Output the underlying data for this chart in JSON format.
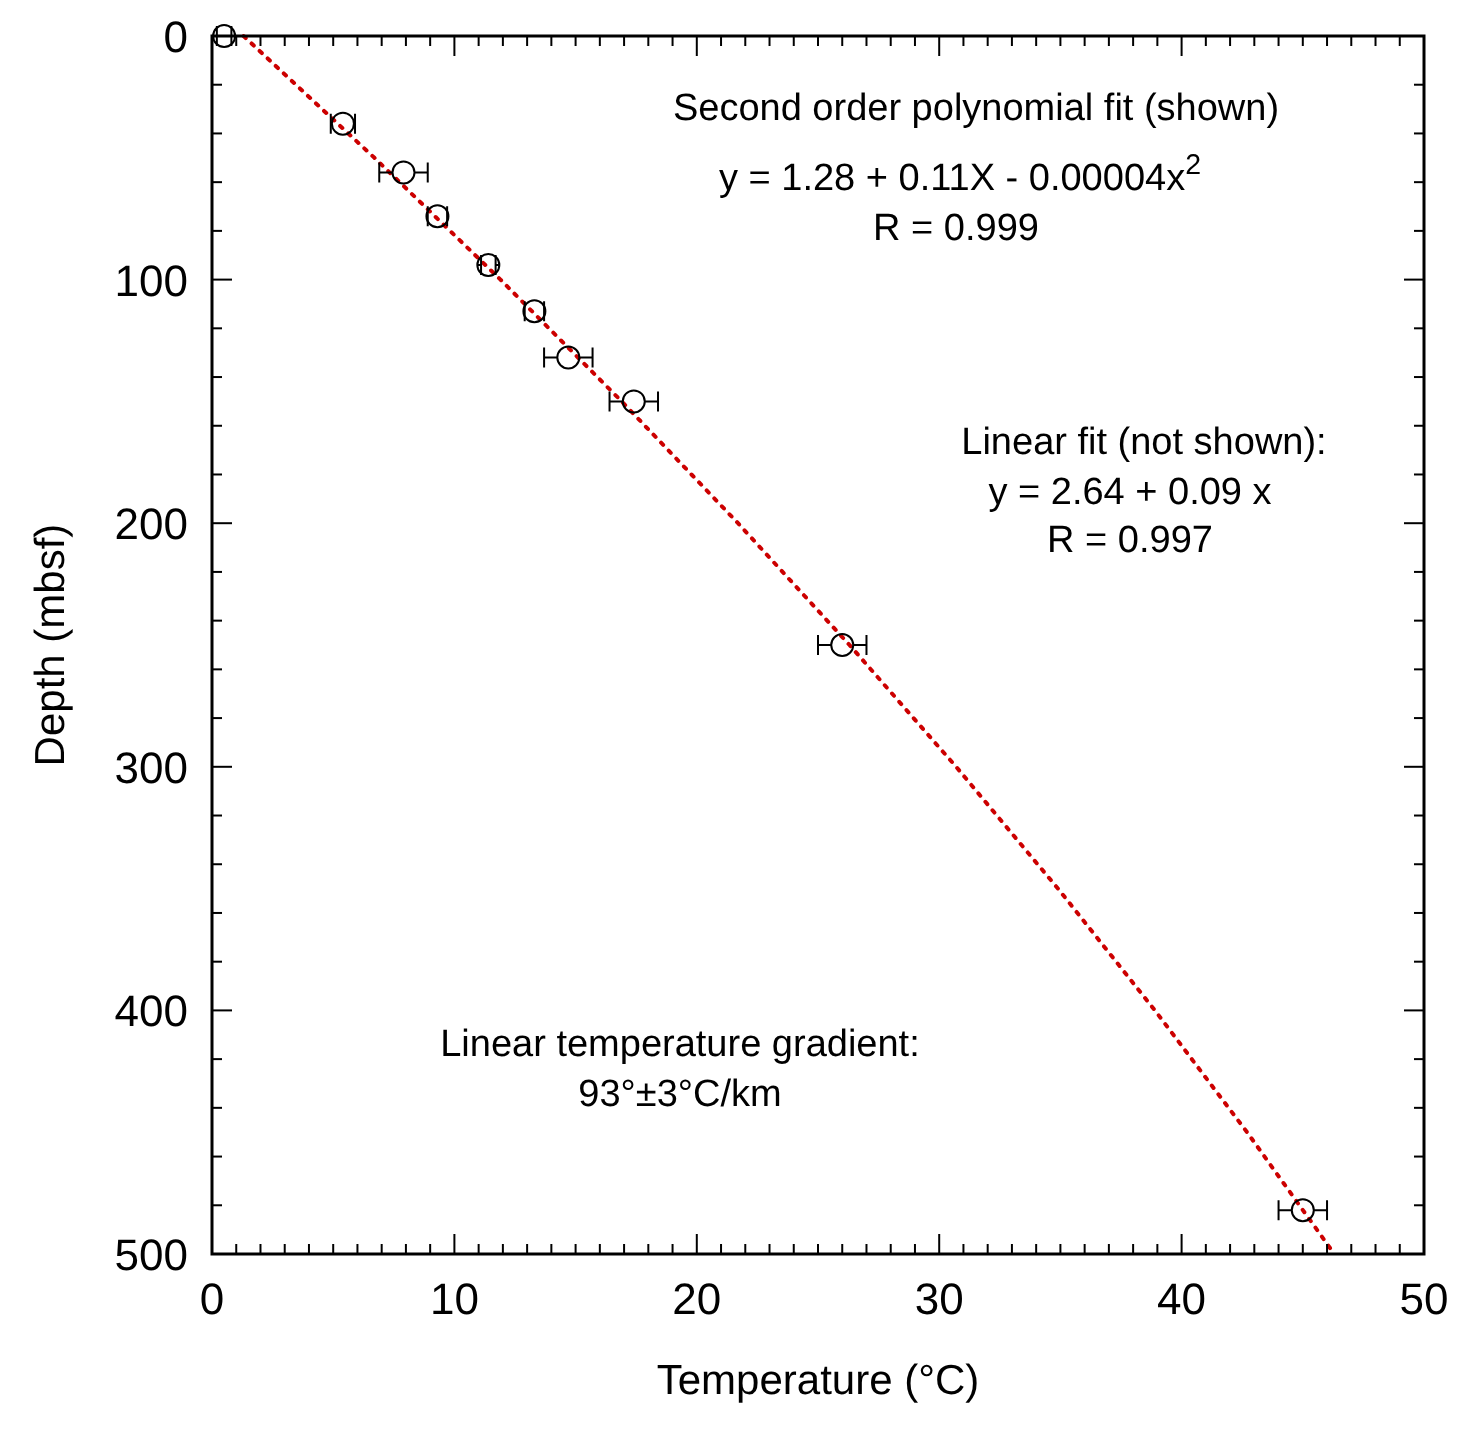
{
  "chart_data": {
    "type": "scatter",
    "xlabel": "Temperature (°C)",
    "ylabel": "Depth (mbsf)",
    "xlim": [
      0,
      50
    ],
    "ylim": [
      500,
      0
    ],
    "xticks": [
      0,
      {
        "value": 1,
        "label": null
      },
      {
        "value": 2,
        "label": null
      },
      {
        "value": 3,
        "label": null
      },
      {
        "value": 4,
        "label": null
      },
      {
        "value": 5,
        "label": null
      },
      {
        "value": 6,
        "label": null
      },
      {
        "value": 7,
        "label": null
      },
      {
        "value": 8,
        "label": null
      },
      {
        "value": 9,
        "label": null
      },
      10,
      {
        "value": 11,
        "label": null
      },
      {
        "value": 12,
        "label": null
      },
      {
        "value": 13,
        "label": null
      },
      {
        "value": 14,
        "label": null
      },
      {
        "value": 15,
        "label": null
      },
      {
        "value": 16,
        "label": null
      },
      {
        "value": 17,
        "label": null
      },
      {
        "value": 18,
        "label": null
      },
      {
        "value": 19,
        "label": null
      },
      20,
      {
        "value": 21,
        "label": null
      },
      {
        "value": 22,
        "label": null
      },
      {
        "value": 23,
        "label": null
      },
      {
        "value": 24,
        "label": null
      },
      {
        "value": 25,
        "label": null
      },
      {
        "value": 26,
        "label": null
      },
      {
        "value": 27,
        "label": null
      },
      {
        "value": 28,
        "label": null
      },
      {
        "value": 29,
        "label": null
      },
      30,
      {
        "value": 31,
        "label": null
      },
      {
        "value": 32,
        "label": null
      },
      {
        "value": 33,
        "label": null
      },
      {
        "value": 34,
        "label": null
      },
      {
        "value": 35,
        "label": null
      },
      {
        "value": 36,
        "label": null
      },
      {
        "value": 37,
        "label": null
      },
      {
        "value": 38,
        "label": null
      },
      {
        "value": 39,
        "label": null
      },
      40,
      {
        "value": 41,
        "label": null
      },
      {
        "value": 42,
        "label": null
      },
      {
        "value": 43,
        "label": null
      },
      {
        "value": 44,
        "label": null
      },
      {
        "value": 45,
        "label": null
      },
      {
        "value": 46,
        "label": null
      },
      {
        "value": 47,
        "label": null
      },
      {
        "value": 48,
        "label": null
      },
      {
        "value": 49,
        "label": null
      },
      50
    ],
    "yticks": [
      0,
      {
        "value": 20,
        "label": null
      },
      {
        "value": 40,
        "label": null
      },
      {
        "value": 60,
        "label": null
      },
      {
        "value": 80,
        "label": null
      },
      100,
      {
        "value": 120,
        "label": null
      },
      {
        "value": 140,
        "label": null
      },
      {
        "value": 160,
        "label": null
      },
      {
        "value": 180,
        "label": null
      },
      200,
      {
        "value": 220,
        "label": null
      },
      {
        "value": 240,
        "label": null
      },
      {
        "value": 260,
        "label": null
      },
      {
        "value": 280,
        "label": null
      },
      300,
      {
        "value": 320,
        "label": null
      },
      {
        "value": 340,
        "label": null
      },
      {
        "value": 360,
        "label": null
      },
      {
        "value": 380,
        "label": null
      },
      400,
      {
        "value": 420,
        "label": null
      },
      {
        "value": 440,
        "label": null
      },
      {
        "value": 460,
        "label": null
      },
      {
        "value": 480,
        "label": null
      },
      500
    ],
    "grid": false,
    "series": [
      {
        "marker": "circle",
        "color": "#000000",
        "x": [
          0.5,
          5.4,
          7.9,
          9.3,
          11.4,
          13.3,
          14.7,
          17.4,
          26.0,
          45.0
        ],
        "values": [
          0,
          36,
          56,
          74,
          94,
          113,
          132,
          150,
          250,
          482
        ],
        "xerrors": [
          0.3,
          0.5,
          1.0,
          0.4,
          0.3,
          0.4,
          1.0,
          1.0,
          1.0,
          1.0
        ]
      },
      {
        "type": "line",
        "color": "#cc0000",
        "line_style": "dotted",
        "x": [
          1.3,
          6.7,
          11.9,
          16.9,
          21.7,
          26.3,
          30.7,
          34.9,
          38.9,
          42.7,
          46.3
        ],
        "values": [
          0,
          50,
          100,
          150,
          200,
          250,
          300,
          350,
          400,
          450,
          500
        ]
      }
    ],
    "annotations": [
      "Second order polynomial fit (shown)",
      "y = 1.28 + 0.11X - 0.00004x$^{2}$",
      "R = 0.999",
      "Linear fit (not shown):",
      "y = 2.64 + 0.09 x",
      "R = 0.997",
      "Linear temperature gradient:",
      "93°±3°C/km"
    ]
  }
}
